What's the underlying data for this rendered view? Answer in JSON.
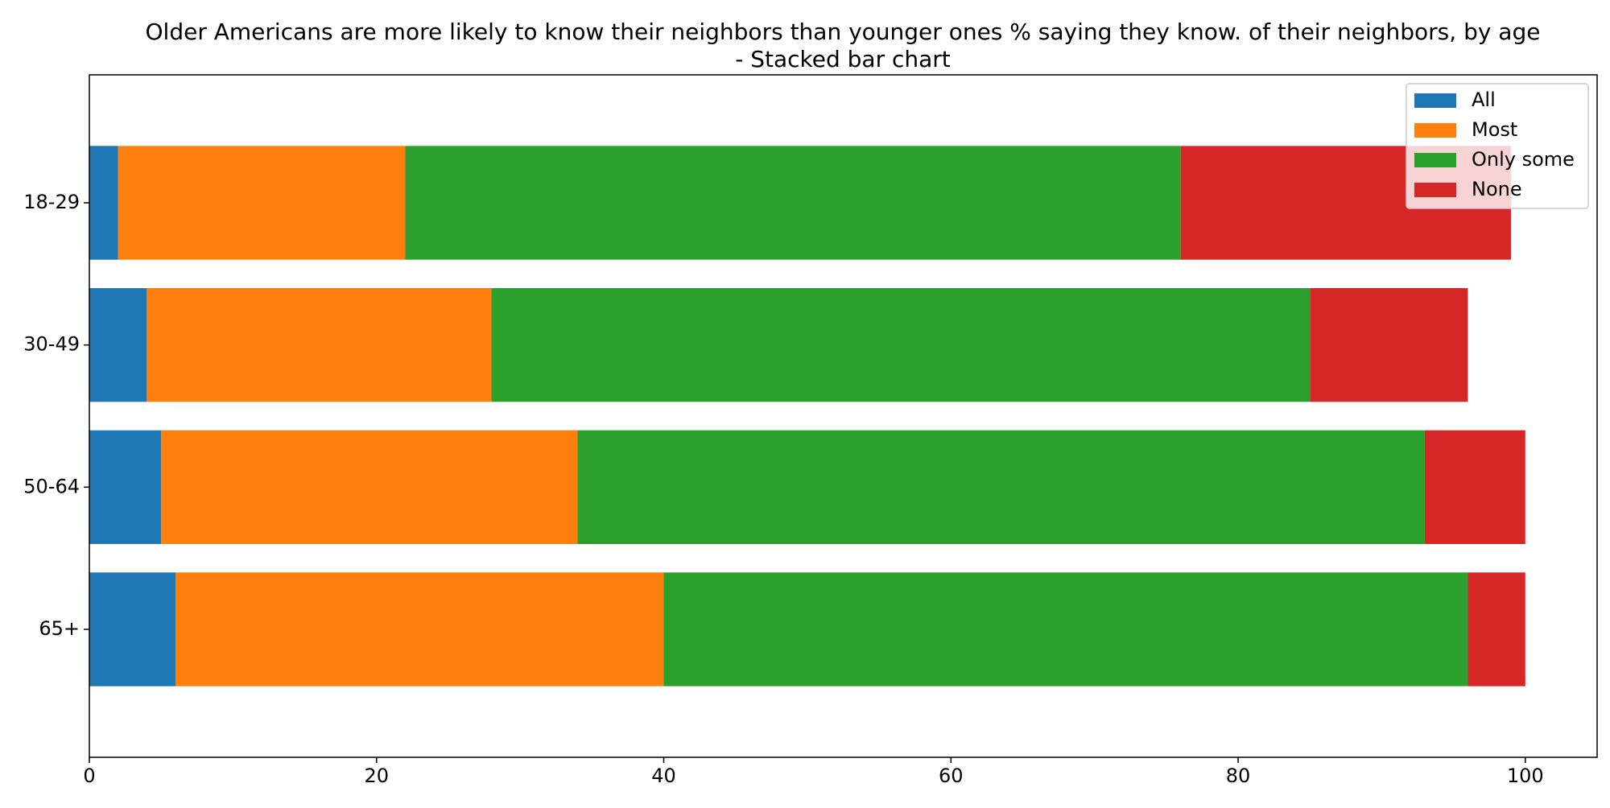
{
  "chart_data": {
    "type": "bar",
    "orientation": "horizontal",
    "stacked": true,
    "title_line1": "Older Americans are more likely to know their neighbors than younger ones % saying they know. of their neighbors, by age",
    "title_line2": "- Stacked bar chart",
    "xlabel": "",
    "ylabel": "",
    "categories": [
      "18-29",
      "30-49",
      "50-64",
      "65+"
    ],
    "series": [
      {
        "name": "All",
        "color": "#1f77b4",
        "values": [
          2,
          4,
          5,
          6
        ]
      },
      {
        "name": "Most",
        "color": "#ff7f0e",
        "values": [
          20,
          24,
          29,
          34
        ]
      },
      {
        "name": "Only some",
        "color": "#2ca02c",
        "values": [
          54,
          57,
          59,
          56
        ]
      },
      {
        "name": "None",
        "color": "#d62728",
        "values": [
          23,
          11,
          7,
          4
        ]
      }
    ],
    "xlim": [
      0,
      105
    ],
    "xticks": [
      0,
      20,
      40,
      60,
      80,
      100
    ],
    "grid": false,
    "legend_position": "top-right"
  }
}
